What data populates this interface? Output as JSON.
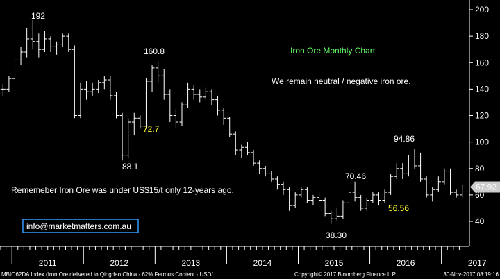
{
  "chart_data": {
    "type": "ohlc",
    "frequency": "monthly",
    "ylim": [
      25,
      205
    ],
    "yticks": [
      40,
      60,
      80,
      100,
      120,
      140,
      160,
      180,
      200
    ],
    "year_labels": [
      "2011",
      "2012",
      "2013",
      "2014",
      "2015",
      "2016",
      "2017"
    ],
    "last_price": "67.92",
    "grid": false,
    "series": [
      {
        "bars": [
          [
            140,
            144,
            135,
            140
          ],
          [
            140,
            150,
            138,
            148
          ],
          [
            148,
            163,
            147,
            162
          ],
          [
            162,
            172,
            158,
            168
          ],
          [
            168,
            186,
            164,
            178
          ],
          [
            178,
            192,
            170,
            176
          ],
          [
            176,
            182,
            164,
            170
          ],
          [
            170,
            184,
            168,
            178
          ],
          [
            178,
            180,
            168,
            172
          ],
          [
            172,
            176,
            166,
            174
          ],
          [
            174,
            182,
            172,
            180
          ],
          [
            180,
            182,
            168,
            170
          ],
          [
            170,
            173,
            118,
            120
          ],
          [
            120,
            145,
            118,
            140
          ],
          [
            140,
            146,
            132,
            138
          ],
          [
            138,
            145,
            135,
            140
          ],
          [
            140,
            147,
            137,
            145
          ],
          [
            145,
            150,
            140,
            147
          ],
          [
            147,
            150,
            132,
            135
          ],
          [
            135,
            138,
            118,
            120
          ],
          [
            120,
            122,
            86,
            90
          ],
          [
            90,
            118,
            88,
            115
          ],
          [
            115,
            122,
            105,
            118
          ],
          [
            118,
            120,
            110,
            112
          ],
          [
            112,
            148,
            110,
            146
          ],
          [
            146,
            158,
            138,
            156
          ],
          [
            156,
            161,
            145,
            150
          ],
          [
            150,
            155,
            132,
            136
          ],
          [
            136,
            140,
            115,
            120
          ],
          [
            120,
            125,
            110,
            115
          ],
          [
            115,
            130,
            112,
            128
          ],
          [
            128,
            145,
            126,
            140
          ],
          [
            140,
            143,
            132,
            136
          ],
          [
            136,
            140,
            130,
            134
          ],
          [
            134,
            141,
            132,
            138
          ],
          [
            138,
            140,
            128,
            132
          ],
          [
            132,
            135,
            120,
            124
          ],
          [
            124,
            126,
            113,
            118
          ],
          [
            118,
            119,
            104,
            106
          ],
          [
            106,
            108,
            90,
            94
          ],
          [
            94,
            98,
            88,
            96
          ],
          [
            96,
            100,
            90,
            92
          ],
          [
            92,
            94,
            82,
            84
          ],
          [
            84,
            86,
            76,
            80
          ],
          [
            80,
            82,
            74,
            76
          ],
          [
            76,
            78,
            70,
            72
          ],
          [
            72,
            74,
            64,
            68
          ],
          [
            68,
            70,
            60,
            64
          ],
          [
            64,
            66,
            48,
            52
          ],
          [
            52,
            62,
            50,
            60
          ],
          [
            60,
            66,
            58,
            64
          ],
          [
            64,
            66,
            54,
            56
          ],
          [
            56,
            60,
            52,
            58
          ],
          [
            58,
            62,
            54,
            56
          ],
          [
            56,
            58,
            44,
            46
          ],
          [
            46,
            48,
            38,
            42
          ],
          [
            42,
            50,
            40,
            44
          ],
          [
            44,
            56,
            42,
            54
          ],
          [
            54,
            66,
            52,
            62
          ],
          [
            62,
            70,
            55,
            58
          ],
          [
            58,
            60,
            48,
            50
          ],
          [
            50,
            58,
            48,
            56
          ],
          [
            56,
            62,
            54,
            60
          ],
          [
            60,
            62,
            52,
            56
          ],
          [
            56,
            64,
            54,
            62
          ],
          [
            62,
            76,
            60,
            74
          ],
          [
            74,
            84,
            72,
            80
          ],
          [
            80,
            84,
            72,
            76
          ],
          [
            76,
            90,
            74,
            88
          ],
          [
            88,
            95,
            80,
            82
          ],
          [
            82,
            92,
            70,
            72
          ],
          [
            72,
            74,
            58,
            60
          ],
          [
            60,
            66,
            55,
            64
          ],
          [
            64,
            74,
            62,
            70
          ],
          [
            70,
            80,
            68,
            78
          ],
          [
            78,
            80,
            60,
            62
          ],
          [
            62,
            64,
            58,
            60
          ],
          [
            60,
            68,
            58,
            66
          ]
        ]
      }
    ]
  },
  "annotations": {
    "title": "Iron Ore Monthly Chart",
    "comment": "We remain neutral / negative iron ore.",
    "history": "Rememeber Iron Ore was under US$15/t only 12-years ago.",
    "contact": "info@marketmatters.com.au",
    "peak_2011": "192",
    "peak_2013": "160.8",
    "low_2012": "88.1",
    "label_2012": "72.7",
    "peak_2016": "70.46",
    "low_2015": "38.30",
    "peak_2017": "94.86",
    "low_2016": "56.56"
  },
  "footer": {
    "left": "MBIO62DA Index (Iron Ore delivered to Qingdao China - 62% Ferrous Content - USD/",
    "center": "Copyright© 2017 Bloomberg Finance L.P.",
    "right": "30-Nov-2017 08:19:16"
  },
  "colors": {
    "background": "#000000",
    "bars": "#ffffff",
    "title": "#66ff66",
    "yellow_label": "#ffff33",
    "contact_border": "#3399ff",
    "last_price_bg": "#cccccc"
  }
}
